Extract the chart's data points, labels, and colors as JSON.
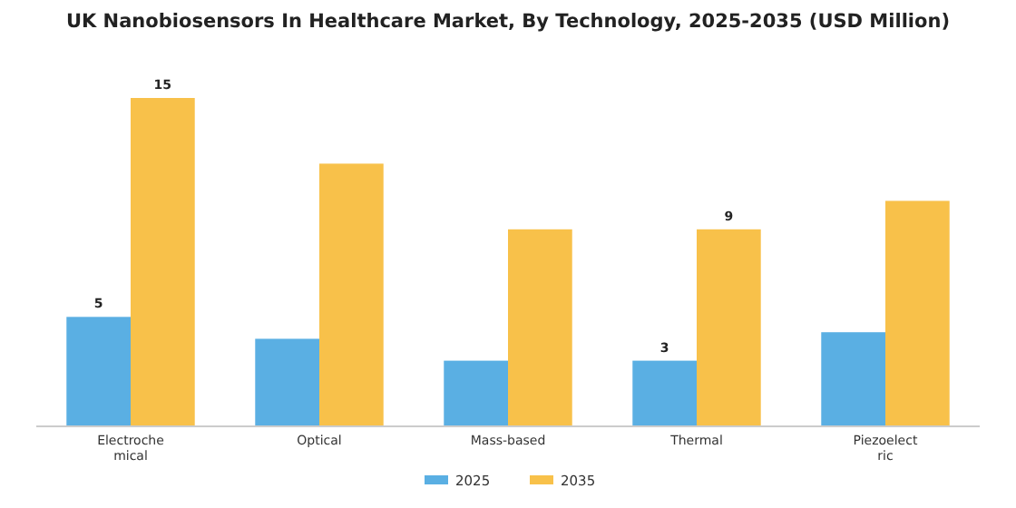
{
  "chart_data": {
    "type": "bar",
    "title": "UK Nanobiosensors In Healthcare Market, By Technology, 2025-2035 (USD Million)",
    "categories": [
      "Electrochemical",
      "Optical",
      "Mass-based",
      "Thermal",
      "Piezoelectric"
    ],
    "series": [
      {
        "name": "2025",
        "color": "#5aafe3",
        "values": [
          5,
          4,
          3,
          3,
          4.3
        ],
        "value_labels": [
          "5",
          null,
          null,
          "3",
          null
        ]
      },
      {
        "name": "2035",
        "color": "#f8c14a",
        "values": [
          15,
          12,
          9,
          9,
          10.3
        ],
        "value_labels": [
          "15",
          null,
          null,
          "9",
          null
        ]
      }
    ],
    "legend": "bottom"
  }
}
